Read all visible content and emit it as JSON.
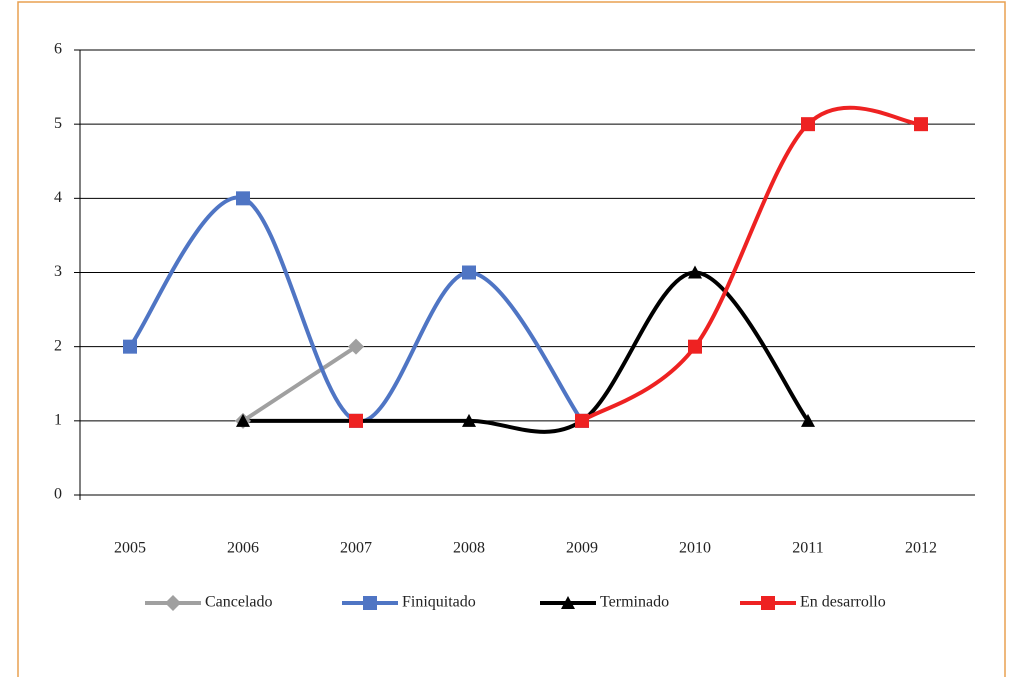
{
  "chart_data": {
    "type": "line",
    "smooth": true,
    "categories": [
      "2005",
      "2006",
      "2007",
      "2008",
      "2009",
      "2010",
      "2011",
      "2012"
    ],
    "series": [
      {
        "name": "Cancelado",
        "color": "#a0a0a0",
        "marker": "diamond",
        "values": [
          null,
          1,
          2,
          null,
          null,
          null,
          null,
          null
        ]
      },
      {
        "name": "Finiquitado",
        "color": "#4f75c4",
        "marker": "square",
        "values": [
          2,
          4,
          1,
          3,
          1,
          null,
          null,
          null
        ]
      },
      {
        "name": "Terminado",
        "color": "#000000",
        "marker": "triangle",
        "values": [
          null,
          1,
          1,
          1,
          1,
          3,
          1,
          null
        ]
      },
      {
        "name": "En desarrollo",
        "color": "#ee2222",
        "marker": "square",
        "values": [
          null,
          null,
          1,
          null,
          1,
          2,
          5,
          5
        ]
      }
    ],
    "ylim": [
      0,
      6
    ],
    "yticks": [
      0,
      1,
      2,
      3,
      4,
      5,
      6
    ],
    "grid": true,
    "legend": "bottom"
  }
}
